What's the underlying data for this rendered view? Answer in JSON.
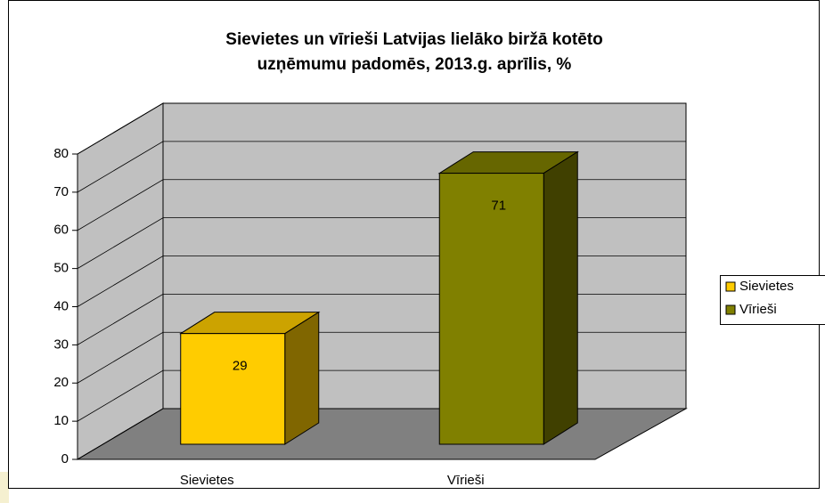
{
  "chart_data": {
    "type": "bar",
    "title": [
      "Sievietes un vīrieši Latvijas lielāko biržā kotēto",
      "uzņēmumu padomēs, 2013.g. aprīlis, %"
    ],
    "categories": [
      "Sievietes",
      "Vīrieši"
    ],
    "series": [
      {
        "name": "Sievietes",
        "color": "#ffcc00",
        "values": [
          29,
          null
        ]
      },
      {
        "name": "Vīrieši",
        "color": "#808000",
        "values": [
          null,
          71
        ]
      }
    ],
    "ylim": [
      0,
      80
    ],
    "yticks": [
      0,
      10,
      20,
      30,
      40,
      50,
      60,
      70,
      80
    ],
    "grid": true,
    "legend": "right"
  }
}
